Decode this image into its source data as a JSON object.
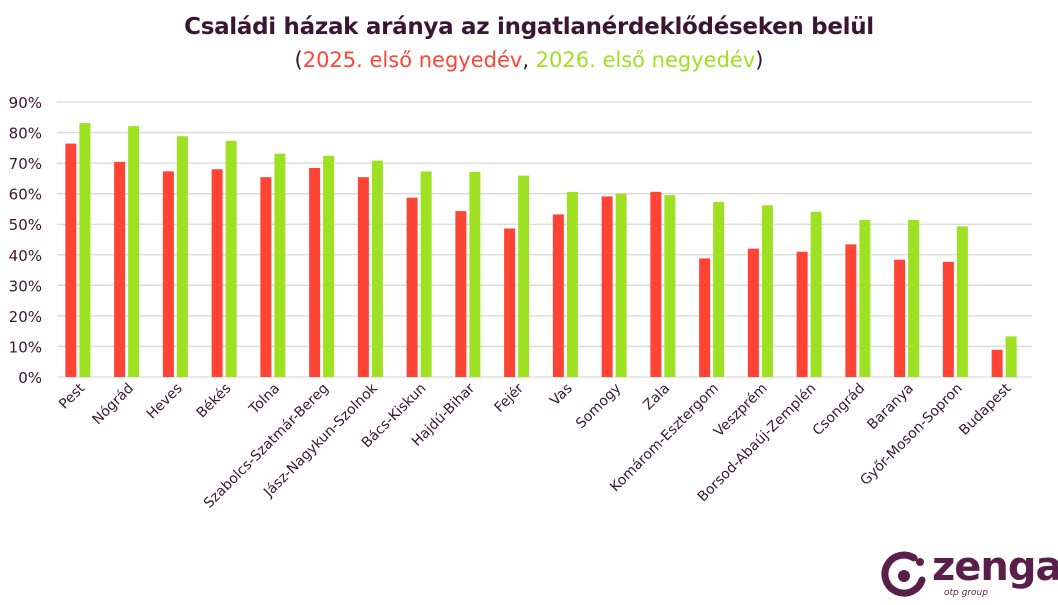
{
  "chart_data": {
    "type": "bar",
    "title": "Családi házak aránya az ingatlanérdeklődéseken belül",
    "subtitle_open": "(",
    "subtitle_sep": ", ",
    "subtitle_close": ")",
    "categories": [
      "Pest",
      "Nógrád",
      "Heves",
      "Békés",
      "Tolna",
      "Szabolcs-Szatmár-Bereg",
      "Jász-Nagykun-Szolnok",
      "Bács-Kiskun",
      "Hajdú-Bihar",
      "Fejér",
      "Vas",
      "Somogy",
      "Zala",
      "Komárom-Esztergom",
      "Veszprém",
      "Borsod-Abaúj-Zemplén",
      "Csongrád",
      "Baranya",
      "Győr-Moson-Sopron",
      "Budapest"
    ],
    "series": [
      {
        "name": "2025. első negyedév",
        "color": "#ff4436",
        "values": [
          76.4,
          70.4,
          67.3,
          68.0,
          65.4,
          68.4,
          65.4,
          58.7,
          54.3,
          48.6,
          53.2,
          59.1,
          60.6,
          38.8,
          42.0,
          41.0,
          43.4,
          38.4,
          37.7,
          8.9
        ]
      },
      {
        "name": "2026. első negyedév",
        "color": "#9ee022",
        "values": [
          83.1,
          82.1,
          78.8,
          77.3,
          73.1,
          72.4,
          70.8,
          67.3,
          67.1,
          65.9,
          60.6,
          60.0,
          59.5,
          57.3,
          56.2,
          54.1,
          51.4,
          51.4,
          49.3,
          13.3
        ]
      }
    ],
    "yticks": [
      "0%",
      "10%",
      "20%",
      "30%",
      "40%",
      "50%",
      "60%",
      "70%",
      "80%",
      "90%"
    ],
    "ylim": [
      0,
      90
    ],
    "grid": true,
    "legend": "subtitle"
  },
  "logo": {
    "name": "zenga",
    "sub": "otp group",
    "color": "#5a1e4b"
  }
}
